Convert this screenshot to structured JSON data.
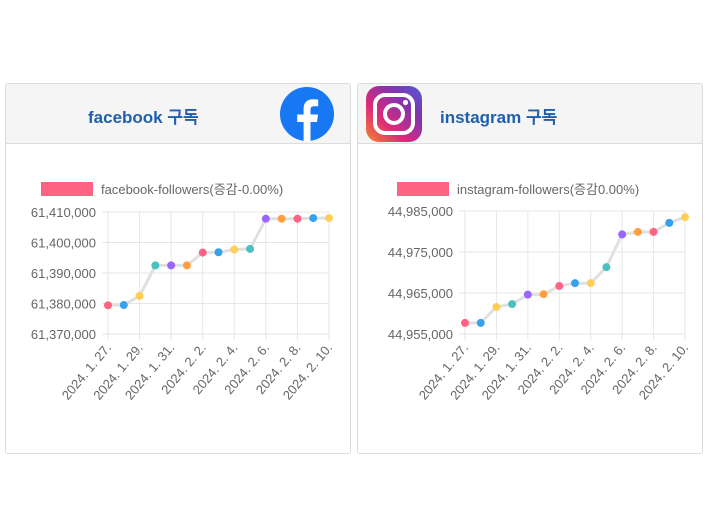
{
  "cards": {
    "facebook": {
      "title": "facebook 구독",
      "logo_icon": "facebook-logo-icon",
      "brand_color": "#1877f2"
    },
    "instagram": {
      "title": "instagram 구독",
      "logo_icon": "instagram-logo-icon",
      "brand_color": "#c13584"
    }
  },
  "chart_data": [
    {
      "type": "line",
      "legend_label": "facebook-followers(증감-0.00%)",
      "legend_color": "#ff6384",
      "line_color": "#e0e0e0",
      "x_tick_labels": [
        "2024. 1. 27.",
        "2024. 1. 29.",
        "2024. 1. 31.",
        "2024. 2. 2.",
        "2024. 2. 4.",
        "2024. 2. 6.",
        "2024. 2. 8.",
        "2024. 2. 10."
      ],
      "y_tick_labels": [
        "61,410,000",
        "61,400,000",
        "61,390,000",
        "61,380,000",
        "61,370,000"
      ],
      "ylim": [
        61370000,
        61410000
      ],
      "y_ticks": [
        61410000,
        61400000,
        61390000,
        61380000,
        61370000
      ],
      "x": [
        "2024-01-27",
        "2024-01-28",
        "2024-01-29",
        "2024-01-30",
        "2024-01-31",
        "2024-02-01",
        "2024-02-02",
        "2024-02-03",
        "2024-02-04",
        "2024-02-05",
        "2024-02-06",
        "2024-02-07",
        "2024-02-08",
        "2024-02-09",
        "2024-02-10"
      ],
      "values": [
        61379400,
        61379500,
        61382500,
        61392500,
        61392500,
        61392500,
        61396700,
        61396800,
        61397700,
        61397900,
        61407800,
        61407800,
        61407800,
        61408000,
        61408000
      ],
      "point_colors": [
        "#ff6384",
        "#36a2eb",
        "#ffce56",
        "#4bc0c0",
        "#9966ff",
        "#ff9f40",
        "#ff6384",
        "#36a2eb",
        "#ffce56",
        "#4bc0c0",
        "#9966ff",
        "#ff9f40",
        "#ff6384",
        "#36a2eb",
        "#ffce56"
      ]
    },
    {
      "type": "line",
      "legend_label": "instagram-followers(증감0.00%)",
      "legend_color": "#ff6384",
      "line_color": "#e0e0e0",
      "x_tick_labels": [
        "2024. 1. 27.",
        "2024. 1. 29.",
        "2024. 1. 31.",
        "2024. 2. 2.",
        "2024. 2. 4.",
        "2024. 2. 6.",
        "2024. 2. 8.",
        "2024. 2. 10."
      ],
      "y_tick_labels": [
        "44,985,000",
        "44,975,000",
        "44,965,000",
        "44,955,000"
      ],
      "ylim": [
        44955000,
        44985000
      ],
      "y_ticks": [
        44985000,
        44975000,
        44965000,
        44955000
      ],
      "x": [
        "2024-01-27",
        "2024-01-28",
        "2024-01-29",
        "2024-01-30",
        "2024-01-31",
        "2024-02-01",
        "2024-02-02",
        "2024-02-03",
        "2024-02-04",
        "2024-02-05",
        "2024-02-06",
        "2024-02-07",
        "2024-02-08",
        "2024-02-09",
        "2024-02-10"
      ],
      "values": [
        44957700,
        44957700,
        44961600,
        44962300,
        44964600,
        44964700,
        44966700,
        44967400,
        44967400,
        44971300,
        44979300,
        44979900,
        44979900,
        44982100,
        44983500
      ],
      "point_colors": [
        "#ff6384",
        "#36a2eb",
        "#ffce56",
        "#4bc0c0",
        "#9966ff",
        "#ff9f40",
        "#ff6384",
        "#36a2eb",
        "#ffce56",
        "#4bc0c0",
        "#9966ff",
        "#ff9f40",
        "#ff6384",
        "#36a2eb",
        "#ffce56"
      ]
    }
  ]
}
